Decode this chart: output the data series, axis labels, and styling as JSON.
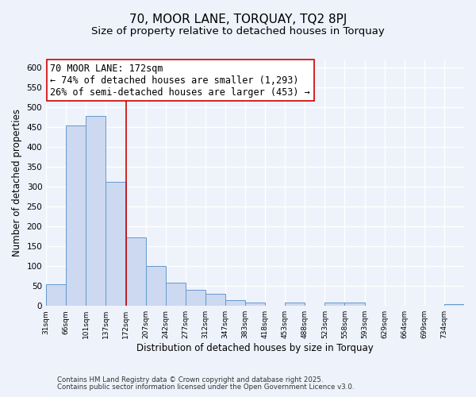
{
  "title": "70, MOOR LANE, TORQUAY, TQ2 8PJ",
  "subtitle": "Size of property relative to detached houses in Torquay",
  "xlabel": "Distribution of detached houses by size in Torquay",
  "ylabel": "Number of detached properties",
  "bin_labels": [
    "31sqm",
    "66sqm",
    "101sqm",
    "137sqm",
    "172sqm",
    "207sqm",
    "242sqm",
    "277sqm",
    "312sqm",
    "347sqm",
    "383sqm",
    "418sqm",
    "453sqm",
    "488sqm",
    "523sqm",
    "558sqm",
    "593sqm",
    "629sqm",
    "664sqm",
    "699sqm",
    "734sqm"
  ],
  "bar_values": [
    55,
    455,
    478,
    313,
    172,
    100,
    58,
    41,
    30,
    15,
    9,
    0,
    8,
    0,
    8,
    8,
    0,
    0,
    0,
    0,
    5
  ],
  "bar_color": "#ccd9f0",
  "bar_edge_color": "#6699cc",
  "vline_x": 4,
  "vline_color": "#cc0000",
  "annotation_line1": "70 MOOR LANE: 172sqm",
  "annotation_line2": "← 74% of detached houses are smaller (1,293)",
  "annotation_line3": "26% of semi-detached houses are larger (453) →",
  "ylim": [
    0,
    620
  ],
  "yticks": [
    0,
    50,
    100,
    150,
    200,
    250,
    300,
    350,
    400,
    450,
    500,
    550,
    600
  ],
  "background_color": "#eef2fb",
  "grid_color": "#ffffff",
  "footer_line1": "Contains HM Land Registry data © Crown copyright and database right 2025.",
  "footer_line2": "Contains public sector information licensed under the Open Government Licence v3.0.",
  "title_fontsize": 11,
  "subtitle_fontsize": 9.5,
  "annotation_fontsize": 8.5
}
